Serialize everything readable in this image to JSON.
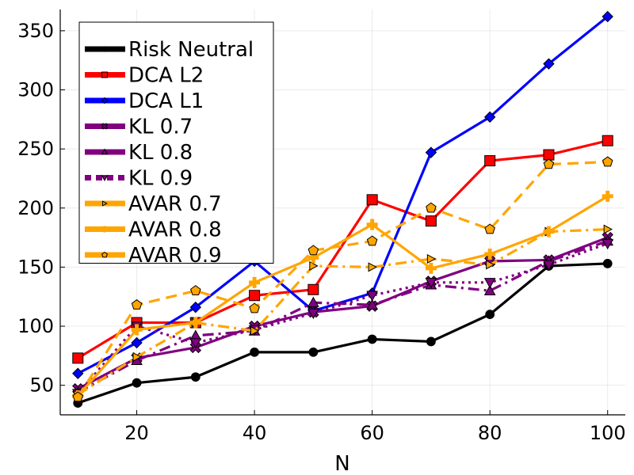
{
  "chart_data": {
    "type": "line",
    "title": "",
    "xlabel": "N",
    "ylabel": "",
    "xlim": [
      7,
      103
    ],
    "ylim": [
      25,
      368
    ],
    "xticks": [
      20,
      40,
      60,
      80,
      100
    ],
    "yticks": [
      50,
      100,
      150,
      200,
      250,
      300,
      350
    ],
    "grid": true,
    "legend_position": "top-left",
    "series": [
      {
        "name": "Risk Neutral",
        "color": "#000000",
        "style": "solid",
        "marker": "circle",
        "x": [
          10,
          20,
          30,
          40,
          50,
          60,
          70,
          80,
          90,
          100
        ],
        "y": [
          35,
          52,
          57,
          78,
          78,
          89,
          87,
          110,
          151,
          153
        ]
      },
      {
        "name": "DCA L2",
        "color": "#ff0000",
        "style": "solid",
        "marker": "square",
        "x": [
          10,
          20,
          30,
          40,
          50,
          60,
          70,
          80,
          90,
          100
        ],
        "y": [
          73,
          103,
          103,
          126,
          131,
          207,
          189,
          240,
          245,
          257
        ]
      },
      {
        "name": "DCA L1",
        "color": "#0000ff",
        "style": "solid",
        "marker": "diamond",
        "x": [
          10,
          20,
          30,
          40,
          50,
          60,
          70,
          80,
          90,
          100
        ],
        "y": [
          60,
          86,
          116,
          155,
          113,
          128,
          247,
          277,
          322,
          362
        ]
      },
      {
        "name": "KL 0.7",
        "color": "#800080",
        "style": "solid",
        "marker": "x",
        "x": [
          10,
          20,
          30,
          40,
          50,
          60,
          70,
          80,
          90,
          100
        ],
        "y": [
          47,
          73,
          82,
          100,
          112,
          117,
          138,
          155,
          156,
          175
        ]
      },
      {
        "name": "KL 0.8",
        "color": "#800080",
        "style": "dashdot",
        "marker": "triangle-up",
        "x": [
          10,
          20,
          30,
          40,
          50,
          60,
          70,
          80,
          90,
          100
        ],
        "y": [
          44,
          71,
          92,
          96,
          120,
          118,
          135,
          130,
          155,
          172
        ]
      },
      {
        "name": "KL 0.9",
        "color": "#800080",
        "style": "dot",
        "marker": "triangle-down",
        "x": [
          10,
          20,
          30,
          40,
          50,
          60,
          70,
          80,
          90,
          100
        ],
        "y": [
          43,
          100,
          86,
          97,
          111,
          126,
          137,
          137,
          152,
          170
        ]
      },
      {
        "name": "AVAR 0.7",
        "color": "#ffa500",
        "style": "dashdot",
        "marker": "triangle-right",
        "x": [
          10,
          20,
          30,
          40,
          50,
          60,
          70,
          80,
          90,
          100
        ],
        "y": [
          42,
          74,
          103,
          96,
          151,
          150,
          157,
          152,
          180,
          182
        ]
      },
      {
        "name": "AVAR 0.8",
        "color": "#ffa500",
        "style": "solid",
        "marker": "plus",
        "x": [
          10,
          20,
          30,
          40,
          50,
          60,
          70,
          80,
          90,
          100
        ],
        "y": [
          41,
          97,
          103,
          137,
          158,
          186,
          149,
          161,
          180,
          210
        ]
      },
      {
        "name": "AVAR 0.9",
        "color": "#ffa500",
        "style": "dash",
        "marker": "pentagon",
        "x": [
          10,
          20,
          30,
          40,
          50,
          60,
          70,
          80,
          90,
          100
        ],
        "y": [
          40,
          118,
          130,
          115,
          164,
          172,
          200,
          182,
          237,
          239
        ]
      }
    ]
  }
}
